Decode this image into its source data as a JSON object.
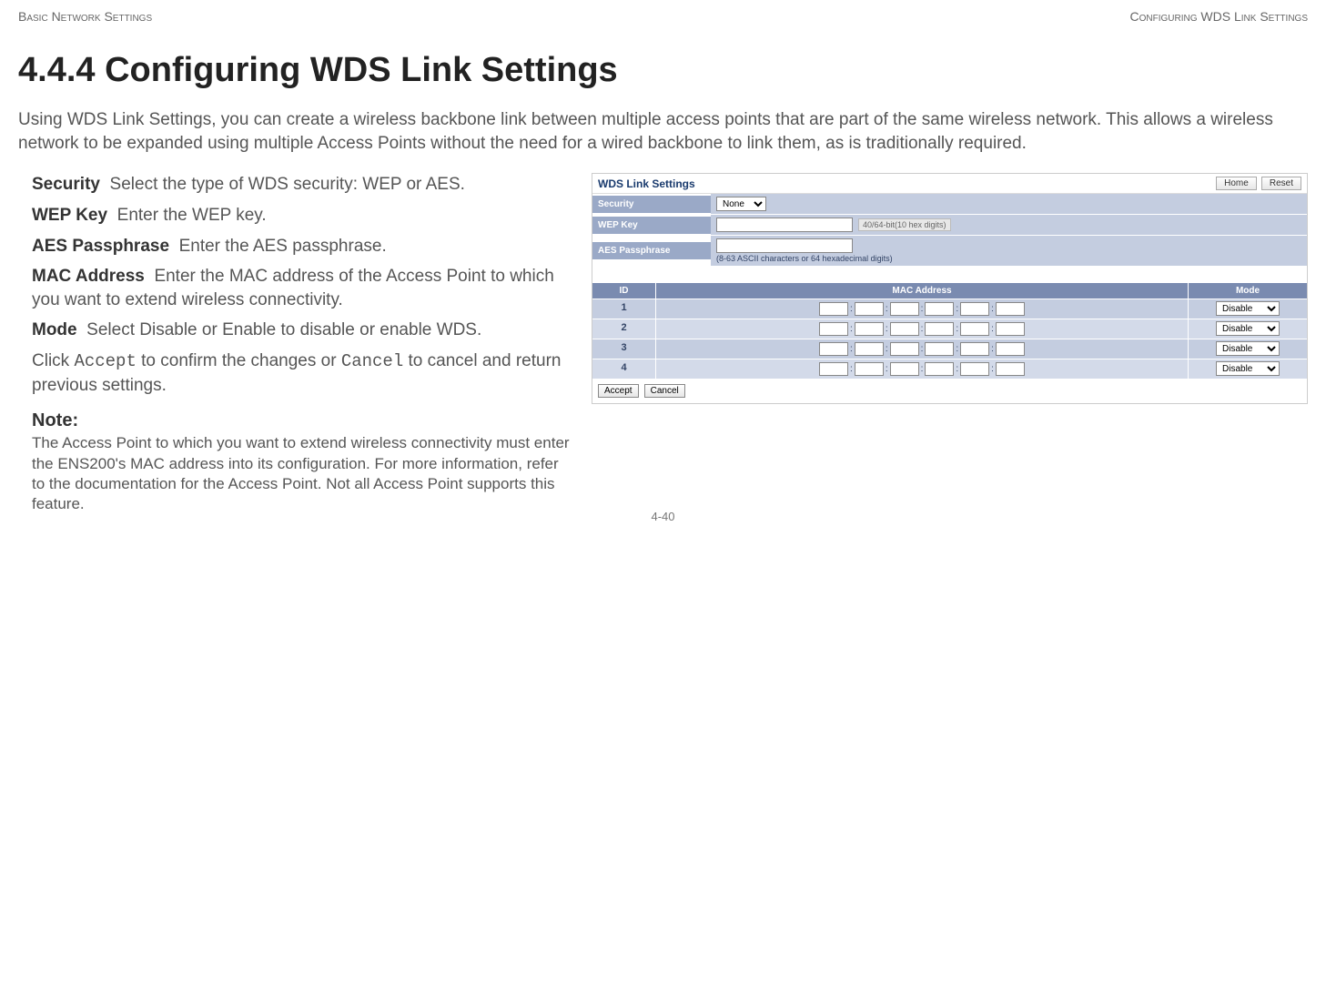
{
  "header": {
    "left": "Basic Network Settings",
    "right": "Configuring WDS Link Settings"
  },
  "heading": "4.4.4 Configuring WDS Link Settings",
  "intro": "Using WDS Link Settings, you can create a wireless backbone link between multiple access points that are part of the same wireless network. This allows a wireless network to be expanded using multiple Access Points without the need for a wired backbone to link them, as is traditionally required.",
  "fields": {
    "security": {
      "label": "Security",
      "desc": "Select the type of WDS security: WEP or AES."
    },
    "wepkey": {
      "label": "WEP Key",
      "desc": "Enter the WEP key."
    },
    "aes": {
      "label": "AES Passphrase",
      "desc": "Enter the AES passphrase."
    },
    "mac": {
      "label": "MAC Address",
      "desc": "Enter the MAC address of the Access Point to which you want to extend wireless connectivity."
    },
    "mode": {
      "label": "Mode",
      "desc": "Select Disable or Enable to disable or enable WDS."
    }
  },
  "confirm": {
    "pre": "Click ",
    "accept": "Accept",
    "mid": " to confirm the changes or ",
    "cancel": "Cancel",
    "post": " to cancel and return previous settings."
  },
  "note": {
    "heading": "Note:",
    "body": "The Access Point to which you want to extend wireless connectivity must enter the ENS200's MAC address into its configuration. For more information, refer to the documentation for the Access Point. Not all Access Point supports this feature."
  },
  "footer": "4-40",
  "screenshot": {
    "title": "WDS Link Settings",
    "buttons": {
      "home": "Home",
      "reset": "Reset"
    },
    "labels": {
      "security": "Security",
      "wepkey": "WEP Key",
      "aes": "AES Passphrase"
    },
    "security_value": "None",
    "wep_hint": "40/64-bit(10 hex digits)",
    "aes_hint": "(8-63 ASCII characters or 64 hexadecimal digits)",
    "table_headers": {
      "id": "ID",
      "mac": "MAC Address",
      "mode": "Mode"
    },
    "rows": [
      {
        "id": "1",
        "mode": "Disable"
      },
      {
        "id": "2",
        "mode": "Disable"
      },
      {
        "id": "3",
        "mode": "Disable"
      },
      {
        "id": "4",
        "mode": "Disable"
      }
    ],
    "form_buttons": {
      "accept": "Accept",
      "cancel": "Cancel"
    },
    "colors": {
      "header_bg": "#7a8bb0",
      "row_bg": "#c4cde0",
      "label_bg": "#9aa9c7",
      "title_color": "#1a3b6e"
    }
  }
}
